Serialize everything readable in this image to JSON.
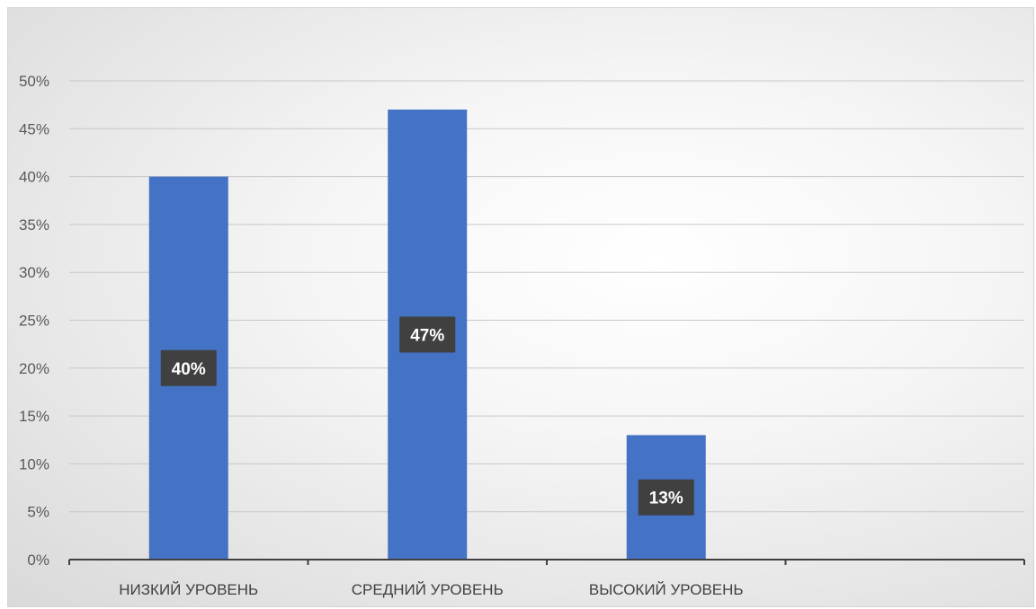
{
  "chart_data": {
    "type": "bar",
    "categories": [
      "НИЗКИЙ УРОВЕНЬ",
      "СРЕДНИЙ УРОВЕНЬ",
      "ВЫСОКИЙ УРОВЕНЬ",
      ""
    ],
    "values": [
      0.4,
      0.47,
      0.13,
      null
    ],
    "data_labels": [
      "40%",
      "47%",
      "13%",
      ""
    ],
    "y_ticks": [
      "0%",
      "5%",
      "10%",
      "15%",
      "20%",
      "25%",
      "30%",
      "35%",
      "40%",
      "45%",
      "50%"
    ],
    "ylim": [
      0,
      0.5
    ],
    "grid": true,
    "title": "",
    "xlabel": "",
    "ylabel": "",
    "bar_color": "#4472c4",
    "label_bg_color": "#404040"
  }
}
